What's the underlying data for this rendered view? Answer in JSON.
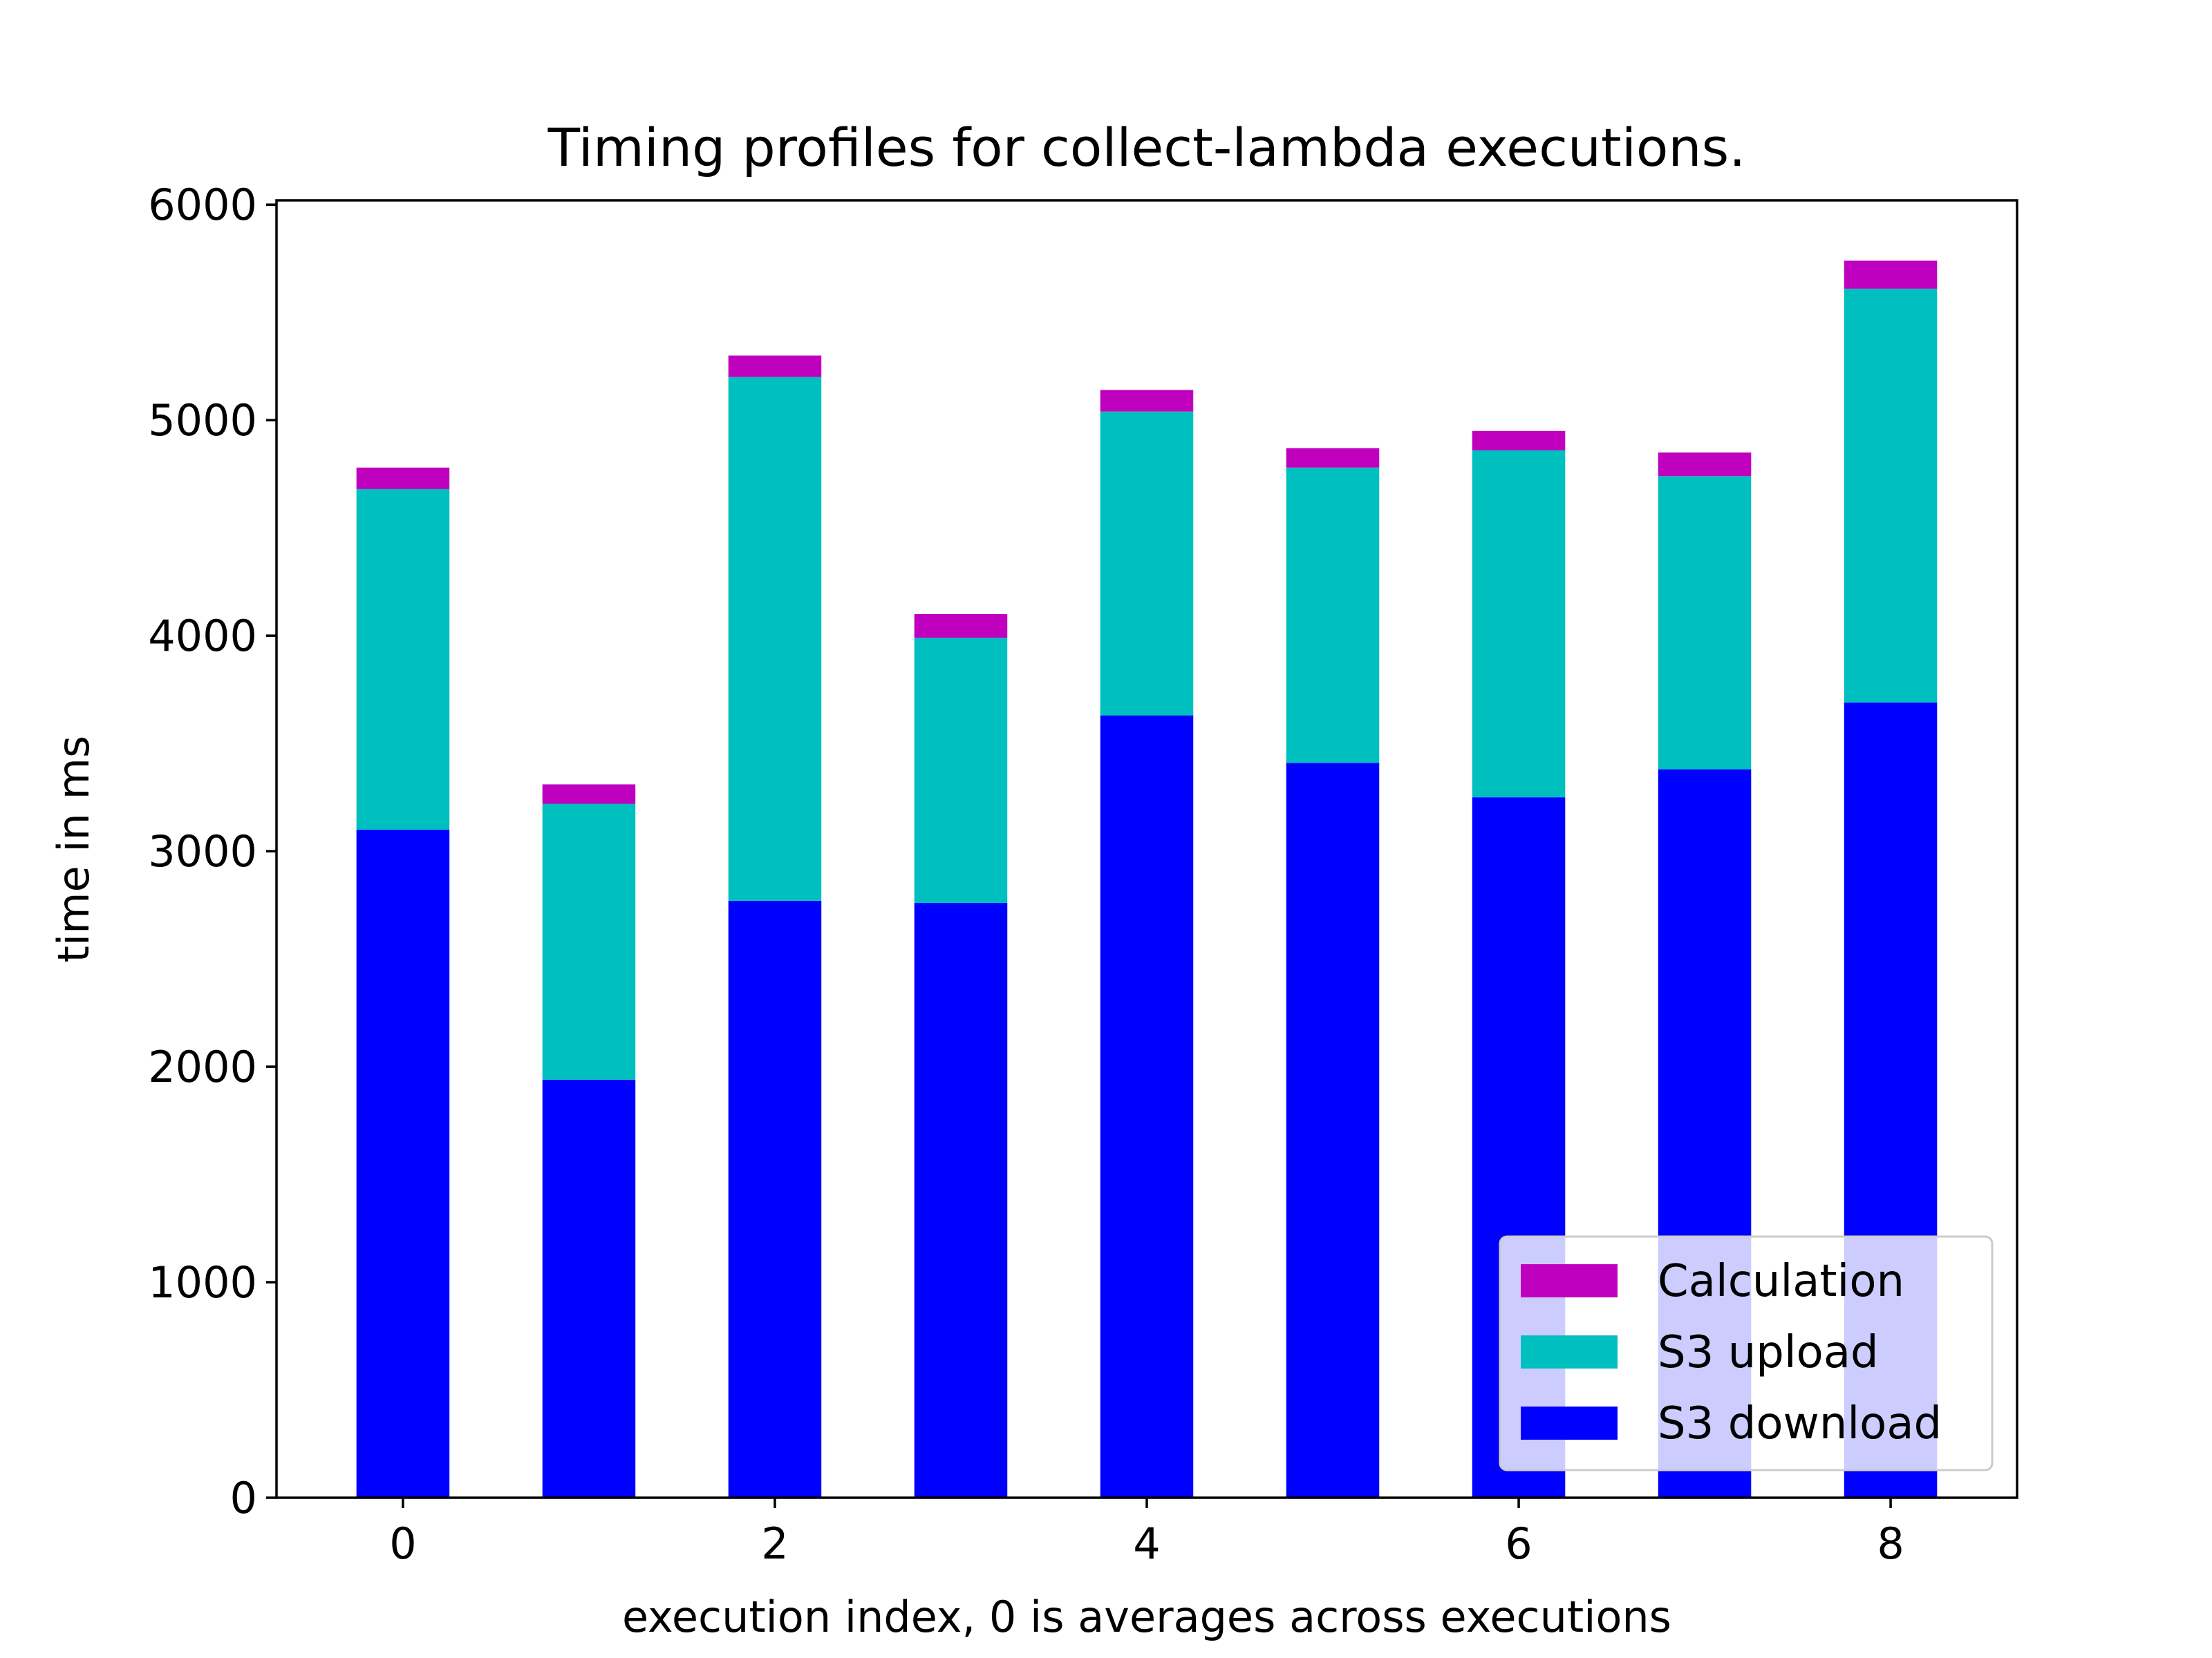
{
  "chart_data": {
    "type": "bar",
    "stacked": true,
    "title": "Timing profiles for collect-lambda executions.",
    "xlabel": "execution index, 0 is averages across executions",
    "ylabel": "time in ms",
    "x": [
      0,
      1,
      2,
      3,
      4,
      5,
      6,
      7,
      8
    ],
    "xticks": [
      0,
      2,
      4,
      6,
      8
    ],
    "xlim": [
      -0.68,
      8.68
    ],
    "ylim": [
      0,
      6020
    ],
    "yticks": [
      0,
      1000,
      2000,
      3000,
      4000,
      5000,
      6000
    ],
    "grid": false,
    "legend_position": "lower-right",
    "series": [
      {
        "name": "S3 download",
        "color": "#0000ff",
        "values": [
          3100,
          1940,
          2770,
          2760,
          3630,
          3410,
          3250,
          3380,
          3690
        ]
      },
      {
        "name": "S3 upload",
        "color": "#00bfbf",
        "values": [
          1580,
          1280,
          2430,
          1230,
          1410,
          1370,
          1610,
          1360,
          1920
        ]
      },
      {
        "name": "Calculation",
        "color": "#bf00bf",
        "values": [
          100,
          90,
          100,
          110,
          100,
          90,
          90,
          110,
          130
        ]
      }
    ],
    "legend_order": [
      "Calculation",
      "S3 upload",
      "S3 download"
    ]
  }
}
